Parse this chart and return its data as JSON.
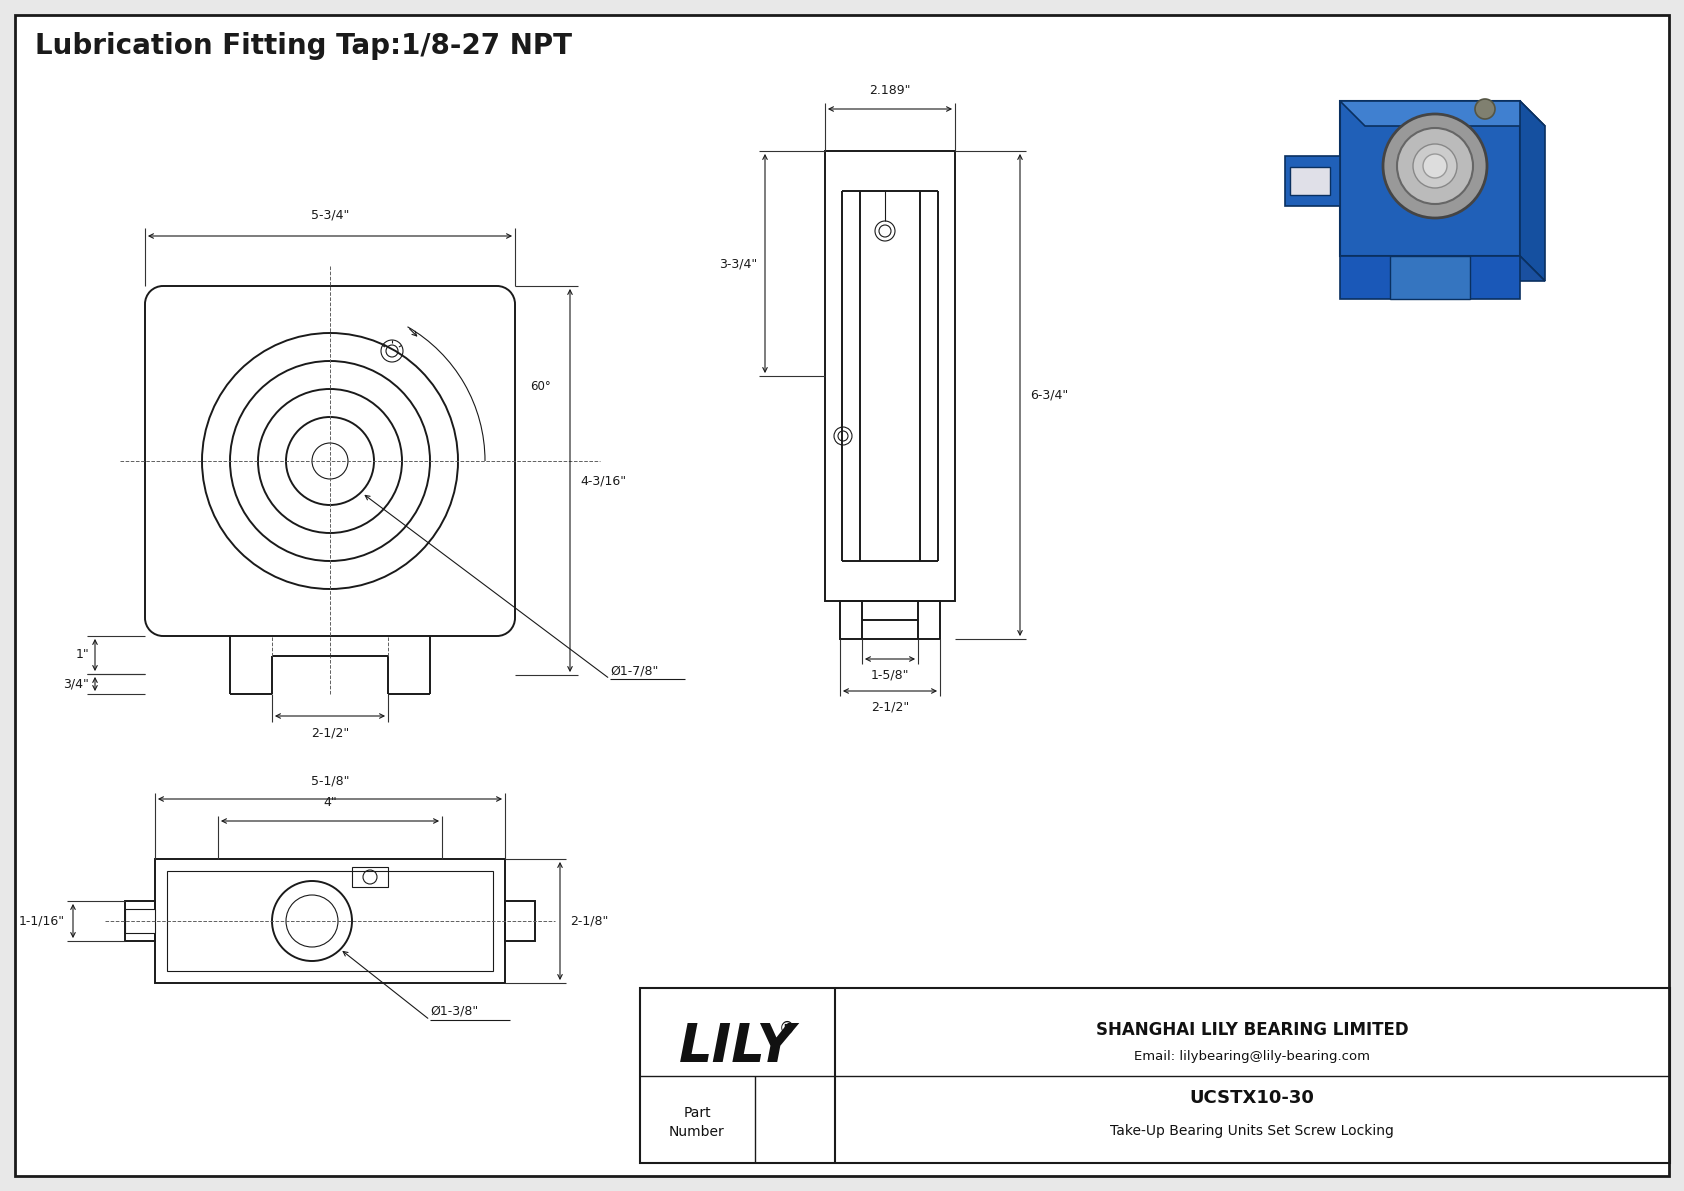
{
  "title": "Lubrication Fitting Tap:1/8-27 NPT",
  "bg_color": "#e8e8e8",
  "drawing_bg": "#ffffff",
  "line_color": "#1a1a1a",
  "title_fontsize": 20,
  "dim_fontsize": 9,
  "company": "SHANGHAI LILY BEARING LIMITED",
  "email": "Email: lilybearing@lily-bearing.com",
  "part_label": "Part\nNumber",
  "part_number": "UCSTX10-30",
  "part_desc": "Take-Up Bearing Units Set Screw Locking",
  "lily_text": "LILY",
  "dimensions_front": {
    "width_overall": "5-3/4\"",
    "height_center": "4-3/16\"",
    "slot_width": "2-1/2\"",
    "bore_dia": "Ø1-7/8\"",
    "flange_height": "1\"",
    "slot_height": "3/4\"",
    "angle": "60°"
  },
  "dimensions_side": {
    "depth": "2.189\"",
    "height_top": "3-3/4\"",
    "height_total": "6-3/4\"",
    "base_width": "1-5/8\"",
    "base_width2": "2-1/2\""
  },
  "dimensions_top": {
    "width_outer": "5-1/8\"",
    "width_inner": "4\"",
    "height": "2-1/8\"",
    "slot_height": "1-1/16\"",
    "bore_dia": "Ø1-3/8\""
  }
}
